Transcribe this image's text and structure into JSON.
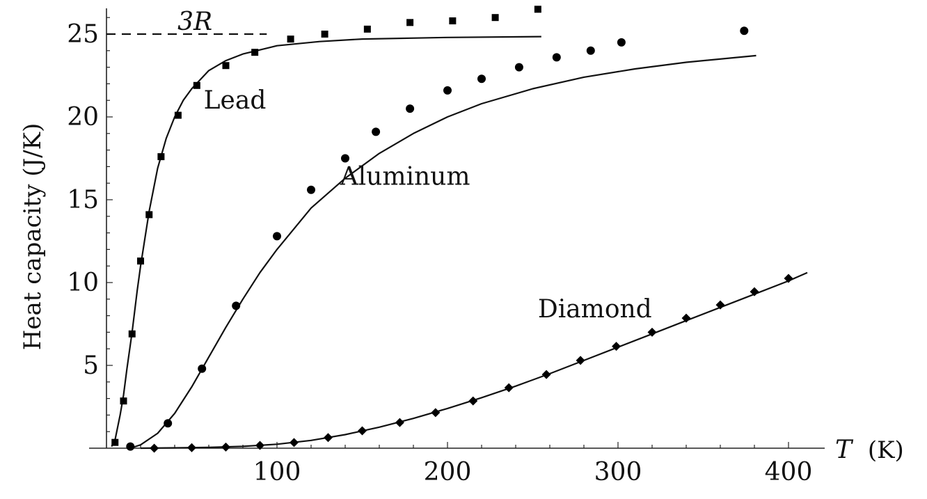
{
  "chart_data": {
    "type": "scatter",
    "title": "",
    "xlabel_italic": "T",
    "xlabel_unit": "(K)",
    "ylabel": "Heat capacity (J/K)",
    "xlim": [
      0,
      420
    ],
    "ylim": [
      0,
      26.5
    ],
    "x_ticks": [
      100,
      200,
      300,
      400
    ],
    "x_tick_labels": [
      "100",
      "200",
      "300",
      "400"
    ],
    "y_ticks": [
      5,
      10,
      15,
      20,
      25
    ],
    "y_tick_labels": [
      "5",
      "10",
      "15",
      "20",
      "25"
    ],
    "reference_line": {
      "label": "3R",
      "y": 25,
      "x_range": [
        0,
        94
      ]
    },
    "grid": false,
    "legend": "none",
    "series": [
      {
        "name": "Lead",
        "marker": "square",
        "points": {
          "x": [
            5,
            10,
            15,
            20,
            25,
            32,
            42,
            53,
            70,
            87,
            108,
            128,
            153,
            178,
            203,
            228,
            253
          ],
          "y": [
            0.35,
            2.85,
            6.9,
            11.3,
            14.1,
            17.6,
            20.1,
            21.9,
            23.1,
            23.9,
            24.7,
            25.0,
            25.3,
            25.7,
            25.8,
            26.0,
            26.5
          ]
        },
        "curve": {
          "x": [
            3,
            5,
            8,
            10,
            12,
            15,
            18,
            20,
            25,
            30,
            35,
            40,
            45,
            50,
            60,
            70,
            80,
            100,
            125,
            150,
            200,
            255
          ],
          "y": [
            0.1,
            0.5,
            2.0,
            3.2,
            4.8,
            7.0,
            9.5,
            11.0,
            14.3,
            16.9,
            18.7,
            20.0,
            21.0,
            21.7,
            22.8,
            23.4,
            23.8,
            24.3,
            24.55,
            24.7,
            24.8,
            24.85
          ]
        },
        "label_position": {
          "x": 57,
          "y": 20.5
        }
      },
      {
        "name": "Aluminum",
        "marker": "circle",
        "points": {
          "x": [
            14,
            36,
            56,
            76,
            100,
            120,
            140,
            158,
            178,
            200,
            220,
            242,
            264,
            284,
            302,
            374
          ],
          "y": [
            0.1,
            1.5,
            4.8,
            8.6,
            12.8,
            15.6,
            17.5,
            19.1,
            20.5,
            21.6,
            22.3,
            23.0,
            23.6,
            24.0,
            24.5,
            25.2
          ]
        },
        "curve": {
          "x": [
            14,
            20,
            30,
            40,
            50,
            60,
            70,
            80,
            90,
            100,
            120,
            140,
            160,
            180,
            200,
            220,
            250,
            280,
            310,
            340,
            381
          ],
          "y": [
            0.0,
            0.2,
            0.9,
            2.1,
            3.7,
            5.5,
            7.3,
            9.0,
            10.6,
            12.0,
            14.5,
            16.3,
            17.8,
            19.0,
            20.0,
            20.8,
            21.7,
            22.4,
            22.9,
            23.3,
            23.7
          ]
        },
        "label_position": {
          "x": 137,
          "y": 15.9
        }
      },
      {
        "name": "Diamond",
        "marker": "diamond",
        "points": {
          "x": [
            28,
            50,
            70,
            90,
            110,
            130,
            150,
            172,
            193,
            215,
            236,
            258,
            278,
            299,
            320,
            340,
            360,
            380,
            400
          ],
          "y": [
            0.0,
            0.03,
            0.07,
            0.17,
            0.34,
            0.64,
            1.05,
            1.55,
            2.15,
            2.85,
            3.65,
            4.45,
            5.3,
            6.15,
            7.0,
            7.85,
            8.65,
            9.45,
            10.25
          ]
        },
        "curve": {
          "x": [
            20,
            40,
            60,
            80,
            100,
            120,
            140,
            160,
            180,
            200,
            220,
            240,
            260,
            280,
            300,
            320,
            340,
            360,
            380,
            400,
            411
          ],
          "y": [
            0.0,
            0.02,
            0.05,
            0.11,
            0.24,
            0.47,
            0.82,
            1.27,
            1.8,
            2.4,
            3.05,
            3.75,
            4.5,
            5.3,
            6.1,
            6.9,
            7.7,
            8.5,
            9.3,
            10.1,
            10.6
          ]
        },
        "label_position": {
          "x": 253,
          "y": 7.9
        }
      }
    ]
  }
}
